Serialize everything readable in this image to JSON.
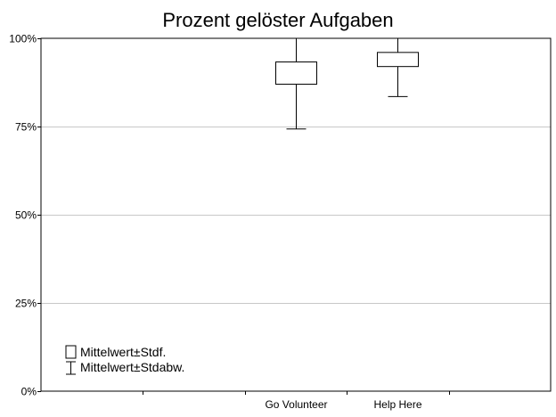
{
  "chart_data": {
    "type": "box",
    "title": "Prozent gelöster Aufgaben",
    "xlabel": "",
    "ylabel": "",
    "categories": [
      "Go Volunteer",
      "Help Here"
    ],
    "series": [
      {
        "category": "Go Volunteer",
        "mean_minus_se": 0.87,
        "mean_plus_se": 0.933,
        "mean_minus_sd": 0.743,
        "mean_plus_sd": 1.0
      },
      {
        "category": "Help Here",
        "mean_minus_se": 0.92,
        "mean_plus_se": 0.96,
        "mean_minus_sd": 0.835,
        "mean_plus_sd": 1.0
      }
    ],
    "ylim": [
      0,
      1
    ],
    "yticks": [
      0,
      0.25,
      0.5,
      0.75,
      1.0
    ],
    "ytick_labels": [
      "0%",
      "25%",
      "50%",
      "75%",
      "100%"
    ],
    "x_slots": 5,
    "category_slots": [
      2,
      3
    ],
    "grid": true,
    "legend": {
      "placement": "bottom-left",
      "items": [
        {
          "symbol": "box",
          "label": "Mittelwert±Stdf."
        },
        {
          "symbol": "whisker",
          "label": "Mittelwert±Stdabw."
        }
      ]
    },
    "colors": {
      "axis": "#000000",
      "grid": "#c8c8c8",
      "box_fill": "#ffffff",
      "box_stroke": "#000000"
    }
  }
}
